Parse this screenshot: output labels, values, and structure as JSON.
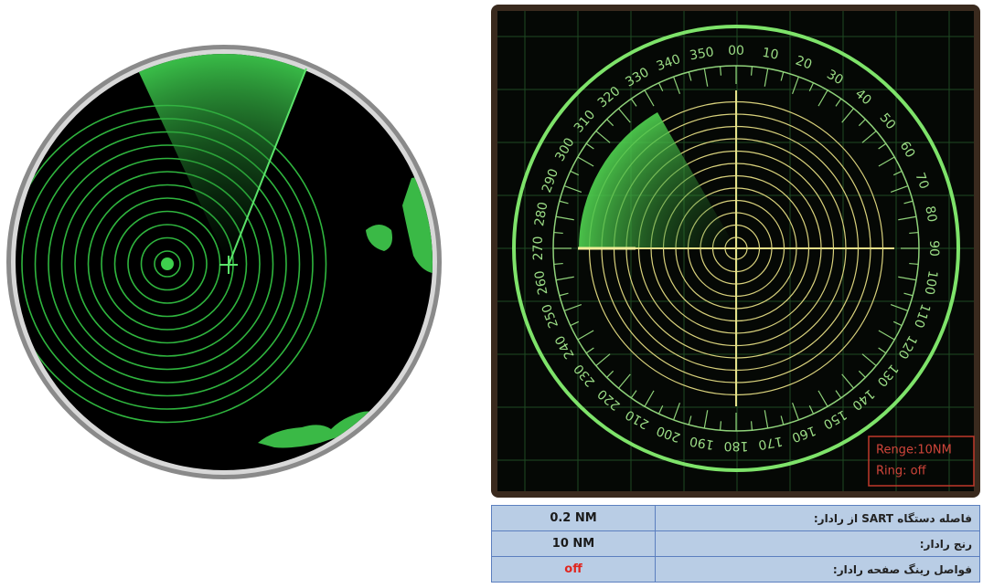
{
  "radar": {
    "bearings": [
      "00",
      "10",
      "20",
      "30",
      "40",
      "50",
      "60",
      "70",
      "80",
      "90",
      "100",
      "110",
      "120",
      "130",
      "140",
      "150",
      "160",
      "170",
      "180",
      "190",
      "200",
      "210",
      "220",
      "230",
      "240",
      "250",
      "260",
      "270",
      "280",
      "290",
      "300",
      "310",
      "320",
      "330",
      "340",
      "350"
    ],
    "info": [
      "Renge:10NM",
      "Ring: off"
    ]
  },
  "table": {
    "rows": [
      [
        "0.2 NM",
        "فاصله دستگاه SART از رادار:"
      ],
      [
        "10 NM",
        "رنج رادار:"
      ],
      [
        "off",
        "فواصل رینگ صفحه رادار:"
      ]
    ]
  }
}
